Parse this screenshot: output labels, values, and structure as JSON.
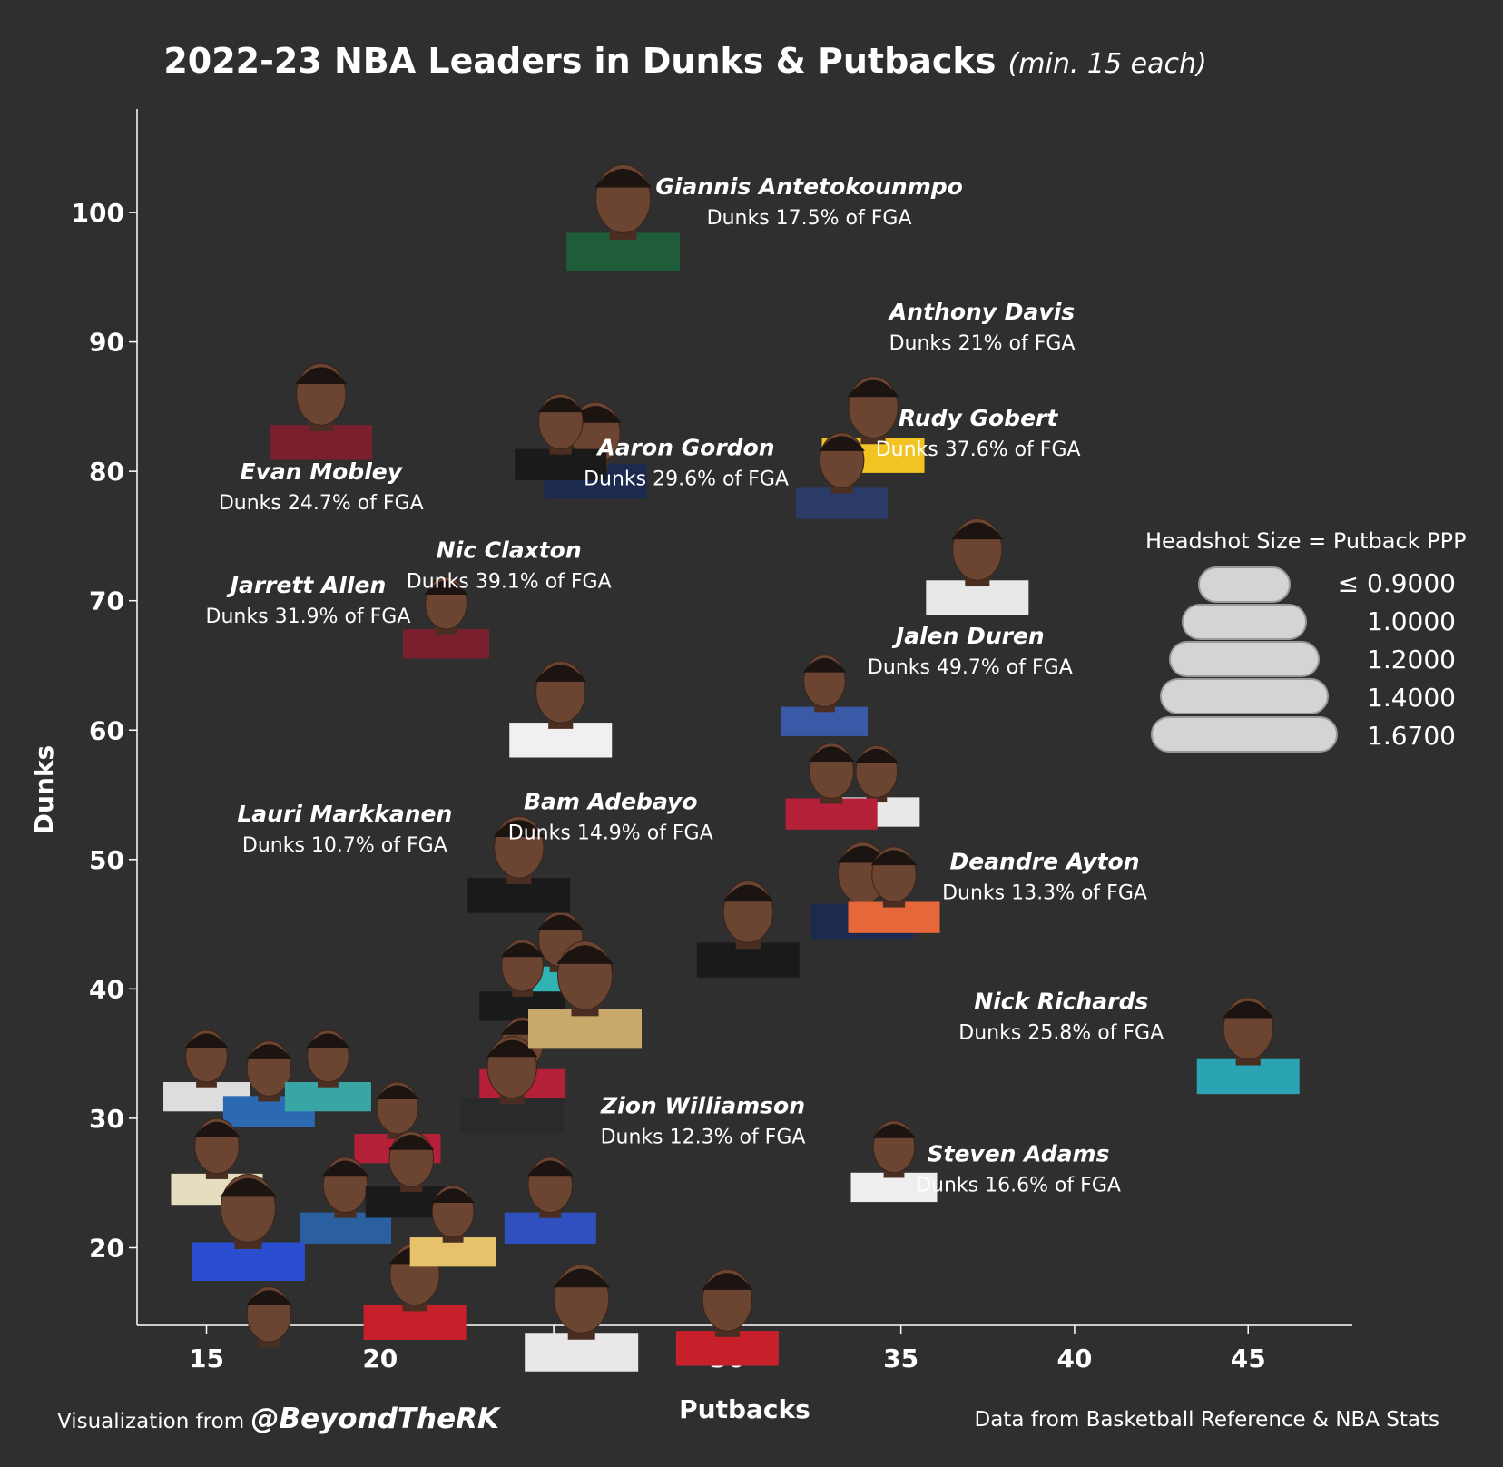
{
  "chart_data": {
    "type": "scatter",
    "title": "2022-23 NBA Leaders in Dunks & Putbacks",
    "subtitle": "(min. 15 each)",
    "xlabel": "Putbacks",
    "ylabel": "Dunks",
    "xlim": [
      13,
      48
    ],
    "ylim": [
      14,
      108
    ],
    "x_ticks": [
      15,
      20,
      25,
      30,
      35,
      40,
      45
    ],
    "y_ticks": [
      20,
      30,
      40,
      50,
      60,
      70,
      80,
      90,
      100
    ],
    "grid": false,
    "size_encoding": "Headshot Size = Putback PPP",
    "size_legend": [
      "≤ 0.9000",
      "1.0000",
      "1.2000",
      "1.4000",
      "1.6700"
    ],
    "size_legend_placement": "right",
    "labeled_points": [
      {
        "name": "Giannis Antetokounmpo",
        "note": "Dunks 17.5% of FGA",
        "x": 27,
        "y": 100,
        "ppp": 1.4,
        "color": "#1f5c3a"
      },
      {
        "name": "Aaron Gordon",
        "note": "Dunks 29.6% of FGA",
        "x": 26.2,
        "y": 82,
        "ppp": 1.2,
        "color": "#1b2a4e"
      },
      {
        "name": "Nic Claxton",
        "note": "Dunks 39.1% of FGA",
        "x": 25.2,
        "y": 83,
        "ppp": 1.0,
        "color": "#1a1a1a"
      },
      {
        "name": "Anthony Davis",
        "note": "Dunks 21% of FGA",
        "x": 34.2,
        "y": 84,
        "ppp": 1.2,
        "color": "#f2c322"
      },
      {
        "name": "Rudy Gobert",
        "note": "Dunks 37.6% of FGA",
        "x": 33.3,
        "y": 80,
        "ppp": 1.0,
        "color": "#2a3c66"
      },
      {
        "name": "Evan Mobley",
        "note": "Dunks 24.7% of FGA",
        "x": 18.3,
        "y": 85,
        "ppp": 1.2,
        "color": "#7a1f2e"
      },
      {
        "name": "Jarrett Allen",
        "note": "Dunks 31.9% of FGA",
        "x": 21.9,
        "y": 69,
        "ppp": 0.9,
        "color": "#7a1f2e"
      },
      {
        "name": "Jalen Duren",
        "note": "Dunks 49.7% of FGA",
        "x": 37.2,
        "y": 73,
        "ppp": 1.2,
        "color": "#e8e8e8"
      },
      {
        "name": "Bam Adebayo",
        "note": "Dunks 14.9% of FGA",
        "x": 25.2,
        "y": 62,
        "ppp": 1.2,
        "color": "#f0f0f0"
      },
      {
        "name": "Lauri Markkanen",
        "note": "Dunks 10.7% of FGA",
        "x": 24,
        "y": 50,
        "ppp": 1.2,
        "color": "#1a1a1a"
      },
      {
        "name": "Deandre Ayton",
        "note": "Dunks 13.3% of FGA",
        "x": 34.8,
        "y": 48,
        "ppp": 1.0,
        "color": "#e5673a"
      },
      {
        "name": "Nick Richards",
        "note": "Dunks 25.8% of FGA",
        "x": 45,
        "y": 36,
        "ppp": 1.2,
        "color": "#2aa3b3"
      },
      {
        "name": "Zion Williamson",
        "note": "Dunks 12.3% of FGA",
        "x": 25.9,
        "y": 40,
        "ppp": 1.4,
        "color": "#c9a86b"
      },
      {
        "name": "Steven Adams",
        "note": "Dunks 16.6% of FGA",
        "x": 34.8,
        "y": 27,
        "ppp": 0.9,
        "color": "#eeeeee"
      }
    ],
    "unlabeled_points": [
      {
        "x": 32.8,
        "y": 63,
        "ppp": 0.9,
        "color": "#3a5aa8"
      },
      {
        "x": 34.3,
        "y": 56,
        "ppp": 0.9,
        "color": "#e8e8e8"
      },
      {
        "x": 33,
        "y": 56,
        "ppp": 1.0,
        "color": "#b32037"
      },
      {
        "x": 33.9,
        "y": 48,
        "ppp": 1.2,
        "color": "#1b2a4e"
      },
      {
        "x": 30.6,
        "y": 45,
        "ppp": 1.2,
        "color": "#1a1a1a"
      },
      {
        "x": 25.2,
        "y": 43,
        "ppp": 1.0,
        "color": "#30b3b3"
      },
      {
        "x": 24.1,
        "y": 41,
        "ppp": 0.9,
        "color": "#1a1a1a"
      },
      {
        "x": 24.1,
        "y": 35,
        "ppp": 0.9,
        "color": "#b32037"
      },
      {
        "x": 23.8,
        "y": 33,
        "ppp": 1.2,
        "color": "#2a2a2a"
      },
      {
        "x": 15,
        "y": 34,
        "ppp": 0.9,
        "color": "#dddddd"
      },
      {
        "x": 16.8,
        "y": 33,
        "ppp": 1.0,
        "color": "#2b6ab3"
      },
      {
        "x": 18.5,
        "y": 34,
        "ppp": 0.9,
        "color": "#39a6a6"
      },
      {
        "x": 15.3,
        "y": 27,
        "ppp": 1.0,
        "color": "#e6dcc0"
      },
      {
        "x": 20.5,
        "y": 30,
        "ppp": 0.9,
        "color": "#b32037"
      },
      {
        "x": 19,
        "y": 24,
        "ppp": 1.0,
        "color": "#2a5fa0"
      },
      {
        "x": 20.9,
        "y": 26,
        "ppp": 1.0,
        "color": "#1a1a1a"
      },
      {
        "x": 16.2,
        "y": 22,
        "ppp": 1.4,
        "color": "#2b4ed0"
      },
      {
        "x": 21,
        "y": 17,
        "ppp": 1.2,
        "color": "#c8202a"
      },
      {
        "x": 16.8,
        "y": 14,
        "ppp": 1.0,
        "color": "#2f2f2f"
      },
      {
        "x": 24.9,
        "y": 24,
        "ppp": 1.0,
        "color": "#3050c0"
      },
      {
        "x": 25.8,
        "y": 15,
        "ppp": 1.4,
        "color": "#e8e8e8"
      },
      {
        "x": 30,
        "y": 15,
        "ppp": 1.2,
        "color": "#c8202a"
      },
      {
        "x": 22.1,
        "y": 22,
        "ppp": 0.9,
        "color": "#e6c26b"
      }
    ]
  },
  "footer": {
    "left_prefix": "Visualization from ",
    "left_handle": "@BeyondTheRK",
    "right": "Data from Basketball Reference & NBA Stats"
  }
}
